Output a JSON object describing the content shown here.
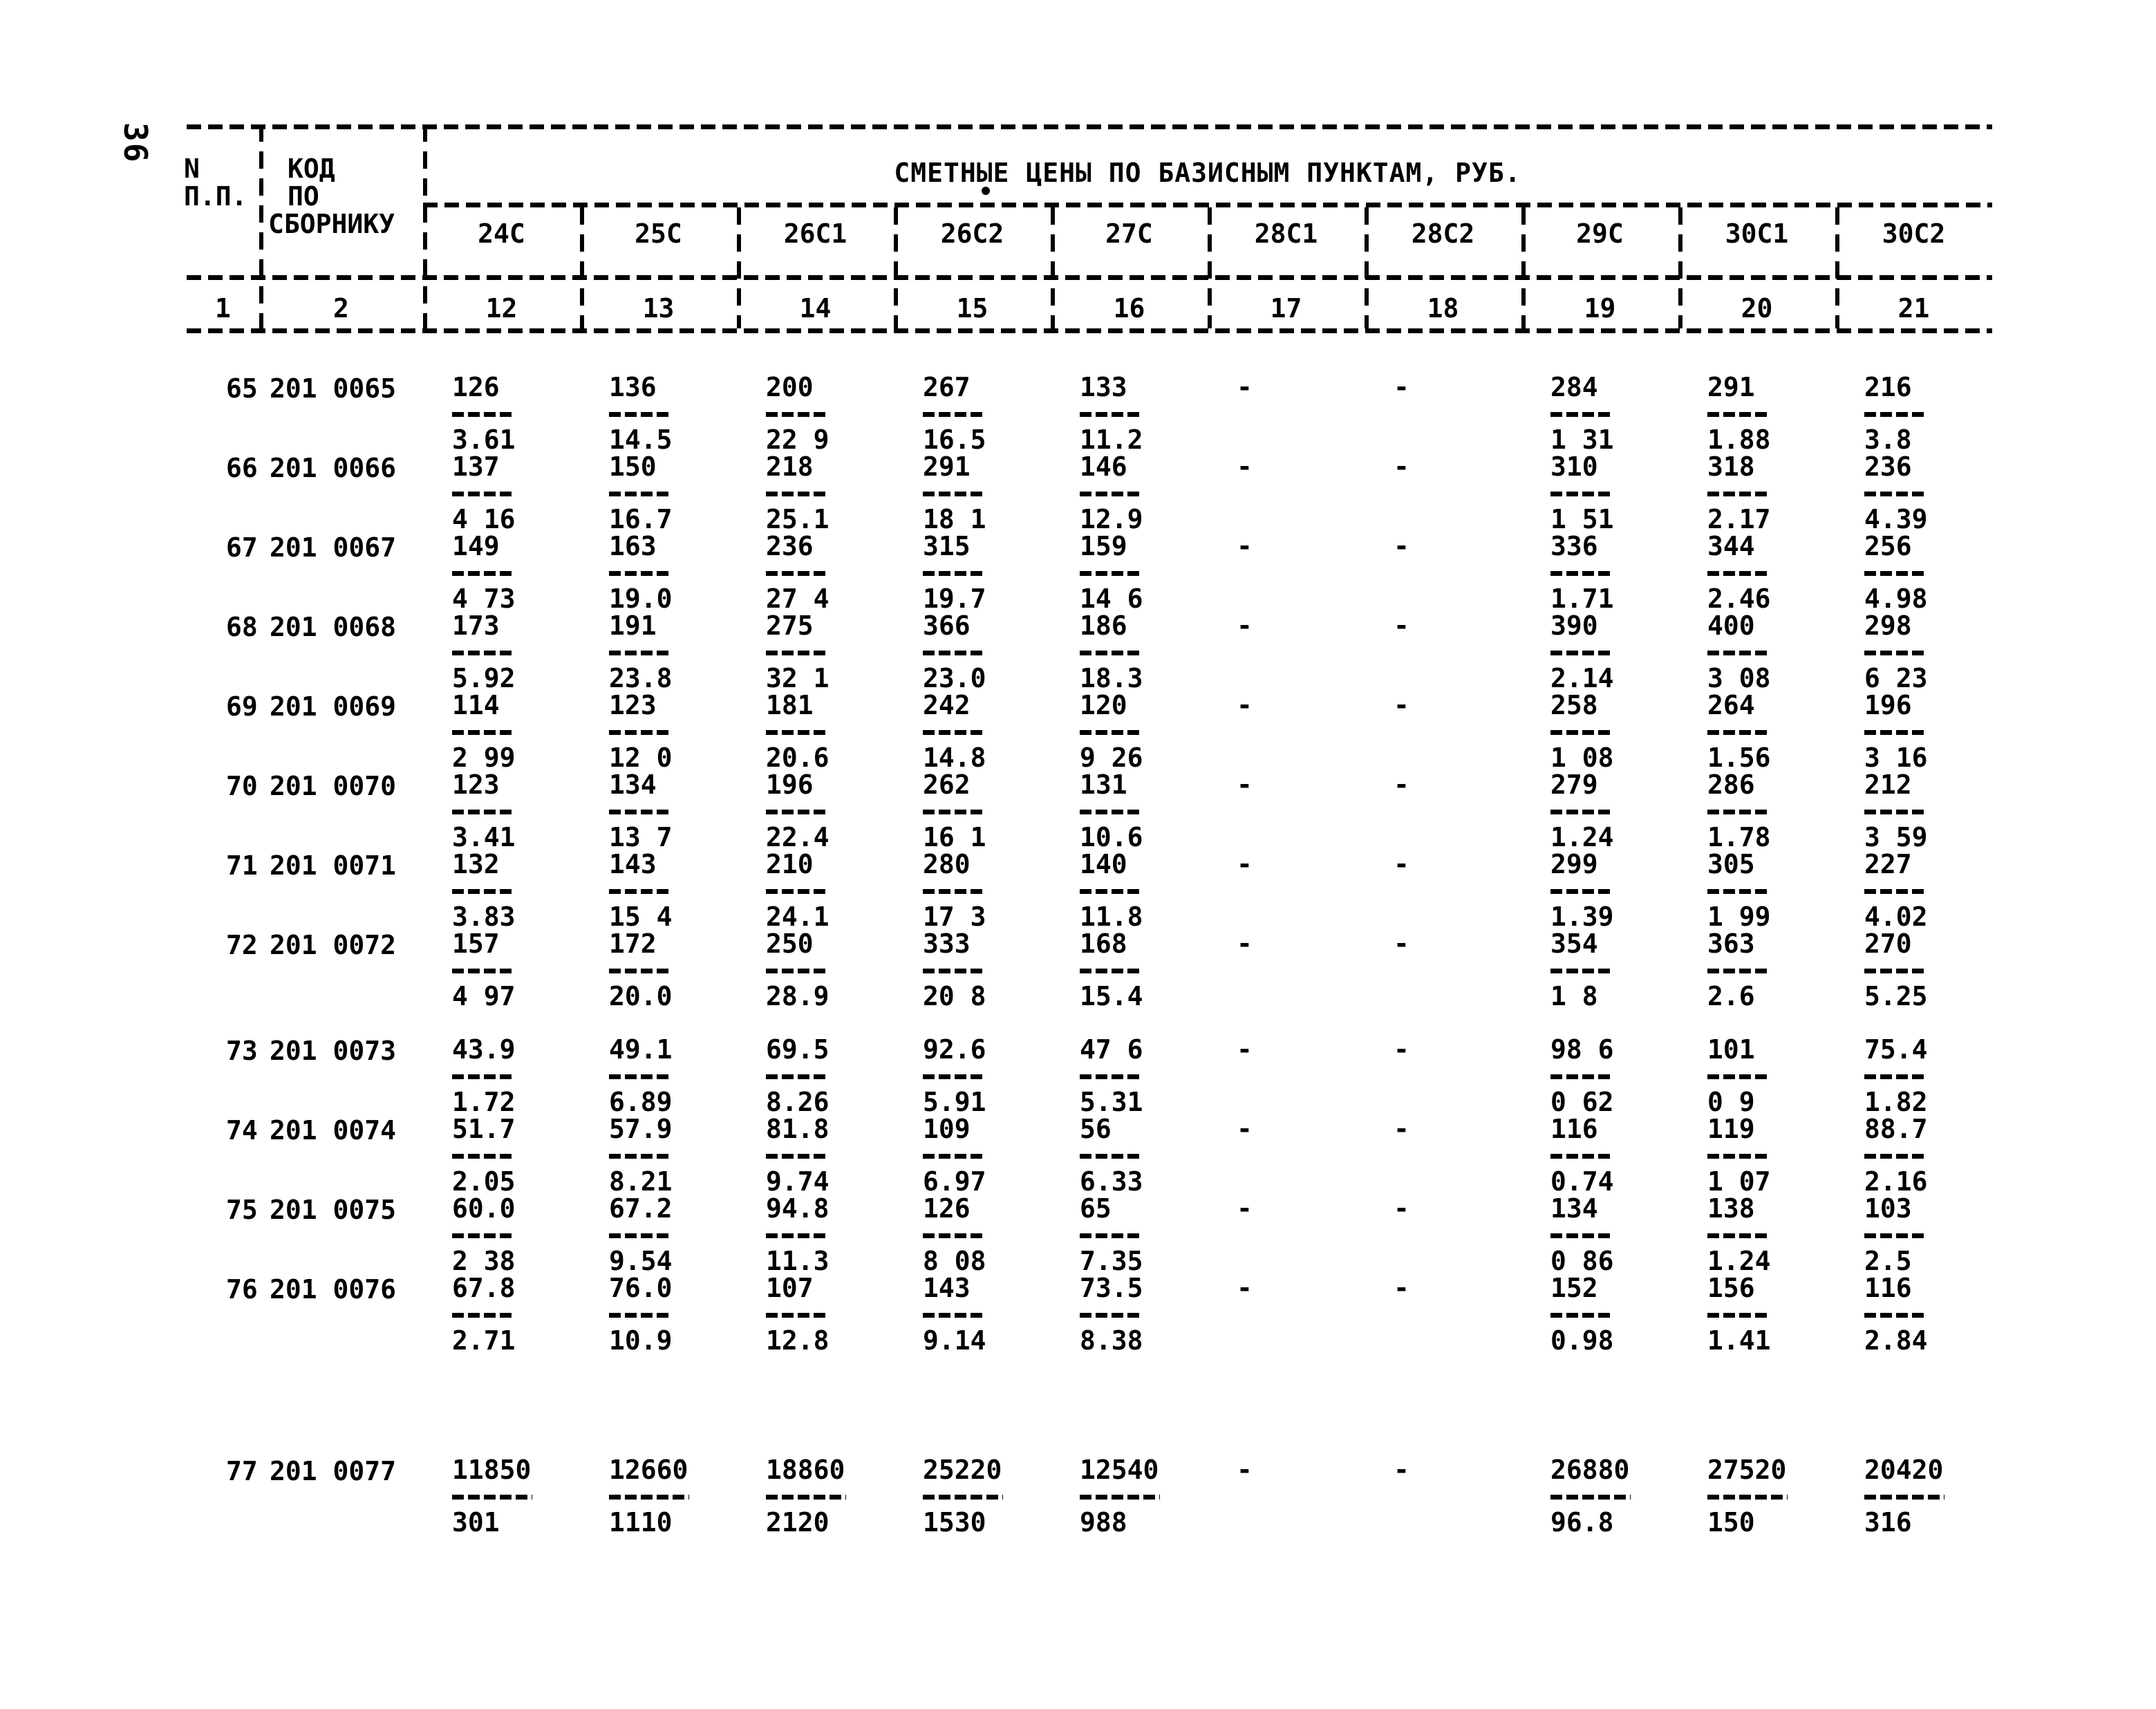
{
  "page": {
    "number": "36"
  },
  "table": {
    "title": "СМЕТНЫЕ ЦЕНЫ ПО БАЗИСНЫМ ПУНКТАМ, РУБ.",
    "header": {
      "row_col_line1": "N",
      "row_col_line2": "П.П.",
      "code_col_line1": "КОД",
      "code_col_line2": "ПО",
      "code_col_line3": "СБОРНИКУ",
      "price_columns": [
        "24С",
        "25С",
        "26С1",
        "26С2",
        "27С",
        "28С1",
        "28С2",
        "29С",
        "30С1",
        "30С2"
      ],
      "index_row": [
        "1",
        "2",
        "12",
        "13",
        "14",
        "15",
        "16",
        "17",
        "18",
        "19",
        "20",
        "21"
      ]
    },
    "rows": [
      {
        "no": "65",
        "code": "201 0065",
        "cells": [
          [
            "126",
            "3.61"
          ],
          [
            "136",
            "14.5"
          ],
          [
            "200",
            "22 9"
          ],
          [
            "267",
            "16.5"
          ],
          [
            "133",
            "11.2"
          ],
          [
            "-"
          ],
          [
            "-"
          ],
          [
            "284",
            "1 31"
          ],
          [
            "291",
            "1.88"
          ],
          [
            "216",
            "3.8"
          ]
        ]
      },
      {
        "no": "66",
        "code": "201 0066",
        "cells": [
          [
            "137",
            "4 16"
          ],
          [
            "150",
            "16.7"
          ],
          [
            "218",
            "25.1"
          ],
          [
            "291",
            "18 1"
          ],
          [
            "146",
            "12.9"
          ],
          [
            "-"
          ],
          [
            "-"
          ],
          [
            "310",
            "1 51"
          ],
          [
            "318",
            "2.17"
          ],
          [
            "236",
            "4.39"
          ]
        ]
      },
      {
        "no": "67",
        "code": "201 0067",
        "cells": [
          [
            "149",
            "4 73"
          ],
          [
            "163",
            "19.0"
          ],
          [
            "236",
            "27 4"
          ],
          [
            "315",
            "19.7"
          ],
          [
            "159",
            "14 6"
          ],
          [
            "-"
          ],
          [
            "-"
          ],
          [
            "336",
            "1.71"
          ],
          [
            "344",
            "2.46"
          ],
          [
            "256",
            "4.98"
          ]
        ]
      },
      {
        "no": "68",
        "code": "201 0068",
        "cells": [
          [
            "173",
            "5.92"
          ],
          [
            "191",
            "23.8"
          ],
          [
            "275",
            "32 1"
          ],
          [
            "366",
            "23.0"
          ],
          [
            "186",
            "18.3"
          ],
          [
            "-"
          ],
          [
            "-"
          ],
          [
            "390",
            "2.14"
          ],
          [
            "400",
            "3 08"
          ],
          [
            "298",
            "6 23"
          ]
        ]
      },
      {
        "no": "69",
        "code": "201 0069",
        "cells": [
          [
            "114",
            "2 99"
          ],
          [
            "123",
            "12 0"
          ],
          [
            "181",
            "20.6"
          ],
          [
            "242",
            "14.8"
          ],
          [
            "120",
            "9 26"
          ],
          [
            "-"
          ],
          [
            "-"
          ],
          [
            "258",
            "1 08"
          ],
          [
            "264",
            "1.56"
          ],
          [
            "196",
            "3 16"
          ]
        ]
      },
      {
        "no": "70",
        "code": "201 0070",
        "cells": [
          [
            "123",
            "3.41"
          ],
          [
            "134",
            "13 7"
          ],
          [
            "196",
            "22.4"
          ],
          [
            "262",
            "16 1"
          ],
          [
            "131",
            "10.6"
          ],
          [
            "-"
          ],
          [
            "-"
          ],
          [
            "279",
            "1.24"
          ],
          [
            "286",
            "1.78"
          ],
          [
            "212",
            "3 59"
          ]
        ]
      },
      {
        "no": "71",
        "code": "201 0071",
        "cells": [
          [
            "132",
            "3.83"
          ],
          [
            "143",
            "15 4"
          ],
          [
            "210",
            "24.1"
          ],
          [
            "280",
            "17 3"
          ],
          [
            "140",
            "11.8"
          ],
          [
            "-"
          ],
          [
            "-"
          ],
          [
            "299",
            "1.39"
          ],
          [
            "305",
            "1 99"
          ],
          [
            "227",
            "4.02"
          ]
        ]
      },
      {
        "no": "72",
        "code": "201 0072",
        "cells": [
          [
            "157",
            "4 97"
          ],
          [
            "172",
            "20.0"
          ],
          [
            "250",
            "28.9"
          ],
          [
            "333",
            "20 8"
          ],
          [
            "168",
            "15.4"
          ],
          [
            "-"
          ],
          [
            "-"
          ],
          [
            "354",
            "1 8"
          ],
          [
            "363",
            "2.6"
          ],
          [
            "270",
            "5.25"
          ]
        ]
      },
      {
        "no": "73",
        "code": "201 0073",
        "gap_before": "small",
        "cells": [
          [
            "43.9",
            "1.72"
          ],
          [
            "49.1",
            "6.89"
          ],
          [
            "69.5",
            "8.26"
          ],
          [
            "92.6",
            "5.91"
          ],
          [
            "47 6",
            "5.31"
          ],
          [
            "-"
          ],
          [
            "-"
          ],
          [
            "98 6",
            "0 62"
          ],
          [
            "101",
            "0 9"
          ],
          [
            "75.4",
            "1.82"
          ]
        ]
      },
      {
        "no": "74",
        "code": "201 0074",
        "cells": [
          [
            "51.7",
            "2.05"
          ],
          [
            "57.9",
            "8.21"
          ],
          [
            "81.8",
            "9.74"
          ],
          [
            "109",
            "6.97"
          ],
          [
            "56",
            "6.33"
          ],
          [
            "-"
          ],
          [
            "-"
          ],
          [
            "116",
            "0.74"
          ],
          [
            "119",
            "1 07"
          ],
          [
            "88.7",
            "2.16"
          ]
        ]
      },
      {
        "no": "75",
        "code": "201 0075",
        "cells": [
          [
            "60.0",
            "2 38"
          ],
          [
            "67.2",
            "9.54"
          ],
          [
            "94.8",
            "11.3"
          ],
          [
            "126",
            "8 08"
          ],
          [
            "65",
            "7.35"
          ],
          [
            "-"
          ],
          [
            "-"
          ],
          [
            "134",
            "0 86"
          ],
          [
            "138",
            "1.24"
          ],
          [
            "103",
            "2.5"
          ]
        ]
      },
      {
        "no": "76",
        "code": "201 0076",
        "cells": [
          [
            "67.8",
            "2.71"
          ],
          [
            "76.0",
            "10.9"
          ],
          [
            "107",
            "12.8"
          ],
          [
            "143",
            "9.14"
          ],
          [
            "73.5",
            "8.38"
          ],
          [
            "-"
          ],
          [
            "-"
          ],
          [
            "152",
            "0.98"
          ],
          [
            "156",
            "1.41"
          ],
          [
            "116",
            "2.84"
          ]
        ]
      },
      {
        "no": "77",
        "code": "201 0077",
        "gap_before": "large",
        "wide_bar": true,
        "cells": [
          [
            "11850",
            "301"
          ],
          [
            "12660",
            "1110"
          ],
          [
            "18860",
            "2120"
          ],
          [
            "25220",
            "1530"
          ],
          [
            "12540",
            "988"
          ],
          [
            "-"
          ],
          [
            "-"
          ],
          [
            "26880",
            "96.8"
          ],
          [
            "27520",
            "150"
          ],
          [
            "20420",
            "316"
          ]
        ]
      }
    ]
  }
}
